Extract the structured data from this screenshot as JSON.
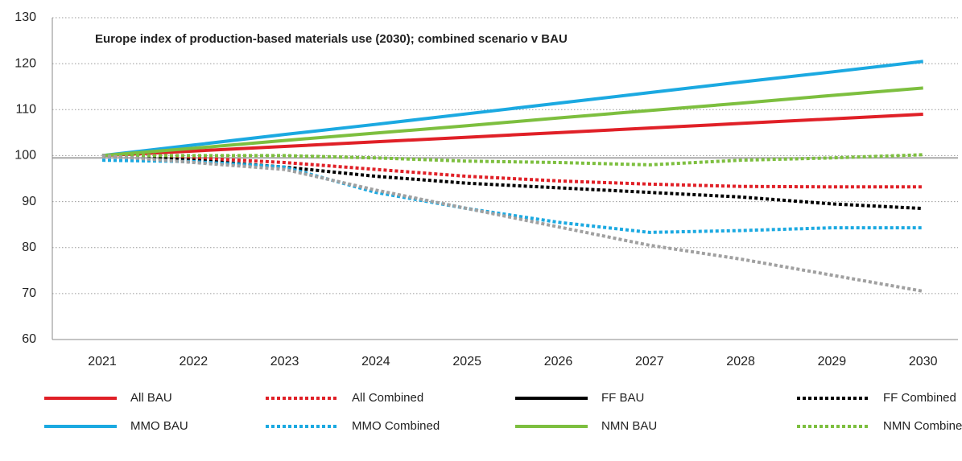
{
  "chart_data": {
    "type": "line",
    "title": "Europe index of production-based materials use (2030); combined scenario v BAU",
    "categories": [
      "2021",
      "2022",
      "2023",
      "2024",
      "2025",
      "2026",
      "2027",
      "2028",
      "2029",
      "2030"
    ],
    "ylim": [
      60,
      130
    ],
    "yticks": [
      60,
      70,
      80,
      90,
      100,
      110,
      120,
      130
    ],
    "grid": true,
    "hline": 99.5,
    "series": [
      {
        "name": "All BAU",
        "color": "#e02027",
        "dash": false,
        "values": [
          100,
          101,
          102,
          103,
          104,
          105,
          106,
          107,
          108,
          109
        ]
      },
      {
        "name": "All Combined",
        "color": "#e02027",
        "dash": true,
        "values": [
          100,
          99.5,
          98.5,
          97,
          95.5,
          94.5,
          93.8,
          93.3,
          93.2,
          93.2
        ]
      },
      {
        "name": "FF BAU",
        "color": "#000000",
        "dash": false,
        "values": [
          null,
          null,
          null,
          null,
          null,
          null,
          null,
          null,
          null,
          null
        ]
      },
      {
        "name": "FF Combined",
        "color": "#000000",
        "dash": true,
        "values": [
          100,
          99,
          97.5,
          95.5,
          94,
          93,
          92,
          91,
          89.5,
          88.5
        ]
      },
      {
        "name": "MMO BAU",
        "color": "#1ba9e1",
        "dash": false,
        "values": [
          100,
          102.3,
          104.6,
          106.8,
          109.1,
          111.4,
          113.7,
          116,
          118.2,
          120.5
        ]
      },
      {
        "name": "MMO Combined",
        "color": "#1ba9e1",
        "dash": true,
        "values": [
          99,
          98.7,
          97.5,
          92,
          88.5,
          85.5,
          83.3,
          83.7,
          84.3,
          84.3
        ]
      },
      {
        "name": "NMN BAU",
        "color": "#7dbf3f",
        "dash": false,
        "values": [
          100,
          101.6,
          103.3,
          104.9,
          106.5,
          108.2,
          109.8,
          111.4,
          113.1,
          114.7
        ]
      },
      {
        "name": "NMN Combined",
        "color": "#7dbf3f",
        "dash": true,
        "values": [
          100,
          100,
          100,
          99.5,
          98.8,
          98.5,
          98,
          99,
          99.5,
          100.2
        ]
      },
      {
        "color": "#a0a0a0",
        "dash": true,
        "values": [
          100,
          98.5,
          97,
          92.5,
          88.5,
          84.5,
          80.5,
          77.5,
          74,
          70.5
        ]
      }
    ]
  }
}
